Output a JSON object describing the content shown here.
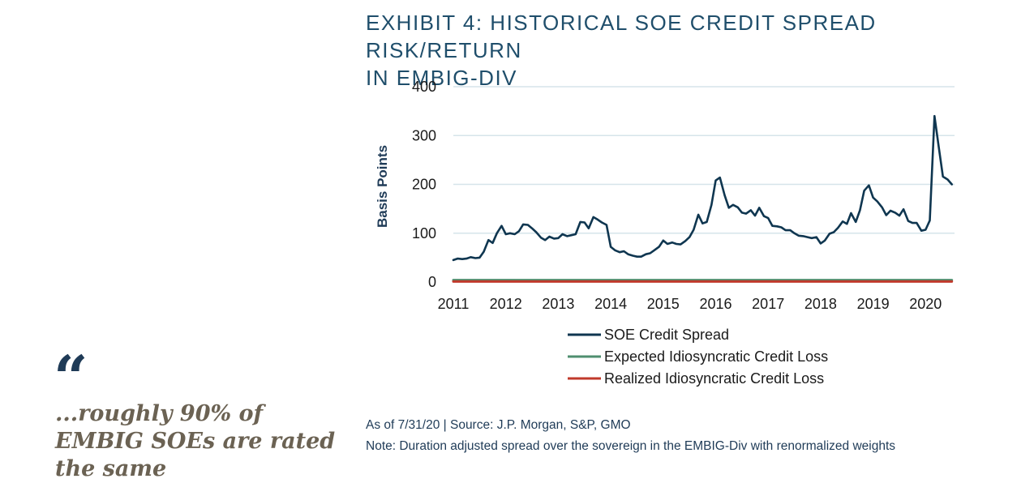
{
  "exhibit": {
    "title_line1": "EXHIBIT 4: HISTORICAL SOE CREDIT SPREAD RISK/RETURN",
    "title_line2": "IN EMBIG-DIV"
  },
  "quote": {
    "mark": "“",
    "text": "...roughly 90% of EMBIG SOEs are rated the same"
  },
  "footer": {
    "source": "As of 7/31/20 | Source: J.P. Morgan, S&P, GMO",
    "note": "Note: Duration adjusted spread over the sovereign in the EMBIG-Div with renormalized weights"
  },
  "colors": {
    "soe": "#0f3650",
    "expected": "#4f8f6f",
    "realized": "#c0392b",
    "grid": "#d6e4ea",
    "title": "#1f4e6b"
  },
  "chart_data": {
    "type": "line",
    "ylabel": "Basis Points",
    "xlabel": "",
    "ylim": [
      0,
      400
    ],
    "yticks": [
      0,
      100,
      200,
      300,
      400
    ],
    "xlim": [
      2011.0,
      2020.6
    ],
    "xticks": [
      "2011",
      "2012",
      "2013",
      "2014",
      "2015",
      "2016",
      "2017",
      "2018",
      "2019",
      "2020"
    ],
    "grid": "horizontal",
    "legend_position": "bottom",
    "series": [
      {
        "name": "SOE Credit Spread",
        "color": "#0f3650",
        "x": [
          2011.0,
          2011.08,
          2011.17,
          2011.25,
          2011.33,
          2011.42,
          2011.5,
          2011.58,
          2011.67,
          2011.75,
          2011.83,
          2011.92,
          2012.0,
          2012.08,
          2012.17,
          2012.25,
          2012.33,
          2012.42,
          2012.5,
          2012.58,
          2012.67,
          2012.75,
          2012.83,
          2012.92,
          2013.0,
          2013.08,
          2013.17,
          2013.25,
          2013.33,
          2013.42,
          2013.5,
          2013.58,
          2013.67,
          2013.75,
          2013.83,
          2013.92,
          2014.0,
          2014.08,
          2014.17,
          2014.25,
          2014.33,
          2014.42,
          2014.5,
          2014.58,
          2014.67,
          2014.75,
          2014.83,
          2014.92,
          2015.0,
          2015.08,
          2015.17,
          2015.25,
          2015.33,
          2015.42,
          2015.5,
          2015.58,
          2015.67,
          2015.75,
          2015.83,
          2015.92,
          2016.0,
          2016.08,
          2016.17,
          2016.25,
          2016.33,
          2016.42,
          2016.5,
          2016.58,
          2016.67,
          2016.75,
          2016.83,
          2016.92,
          2017.0,
          2017.08,
          2017.17,
          2017.25,
          2017.33,
          2017.42,
          2017.5,
          2017.58,
          2017.67,
          2017.75,
          2017.83,
          2017.92,
          2018.0,
          2018.08,
          2018.17,
          2018.25,
          2018.33,
          2018.42,
          2018.5,
          2018.58,
          2018.67,
          2018.75,
          2018.83,
          2018.92,
          2019.0,
          2019.08,
          2019.17,
          2019.25,
          2019.33,
          2019.42,
          2019.5,
          2019.58,
          2019.67,
          2019.75,
          2019.83,
          2019.92,
          2020.0,
          2020.08,
          2020.17,
          2020.25,
          2020.33,
          2020.42,
          2020.5
        ],
        "values": [
          45,
          48,
          47,
          48,
          51,
          49,
          50,
          62,
          86,
          80,
          100,
          115,
          98,
          100,
          98,
          104,
          118,
          117,
          110,
          102,
          91,
          86,
          93,
          89,
          90,
          98,
          94,
          96,
          98,
          123,
          122,
          110,
          133,
          128,
          122,
          117,
          72,
          65,
          61,
          63,
          57,
          54,
          52,
          52,
          57,
          59,
          65,
          72,
          85,
          78,
          81,
          78,
          77,
          84,
          92,
          107,
          138,
          120,
          123,
          158,
          208,
          214,
          178,
          152,
          158,
          153,
          142,
          140,
          147,
          136,
          152,
          135,
          131,
          115,
          114,
          112,
          106,
          106,
          100,
          95,
          94,
          92,
          90,
          92,
          79,
          85,
          99,
          102,
          111,
          124,
          119,
          141,
          123,
          147,
          187,
          198,
          173,
          165,
          153,
          137,
          146,
          142,
          136,
          149,
          125,
          121,
          121,
          105,
          107,
          126,
          340,
          277,
          216,
          210,
          200
        ]
      },
      {
        "name": "Expected Idiosyncratic Credit Loss",
        "color": "#4f8f6f",
        "x": [
          2011.0,
          2020.5
        ],
        "values": [
          4,
          4
        ]
      },
      {
        "name": "Realized Idiosyncratic Credit Loss",
        "color": "#c0392b",
        "x": [
          2011.0,
          2020.5
        ],
        "values": [
          1,
          1
        ]
      }
    ]
  }
}
